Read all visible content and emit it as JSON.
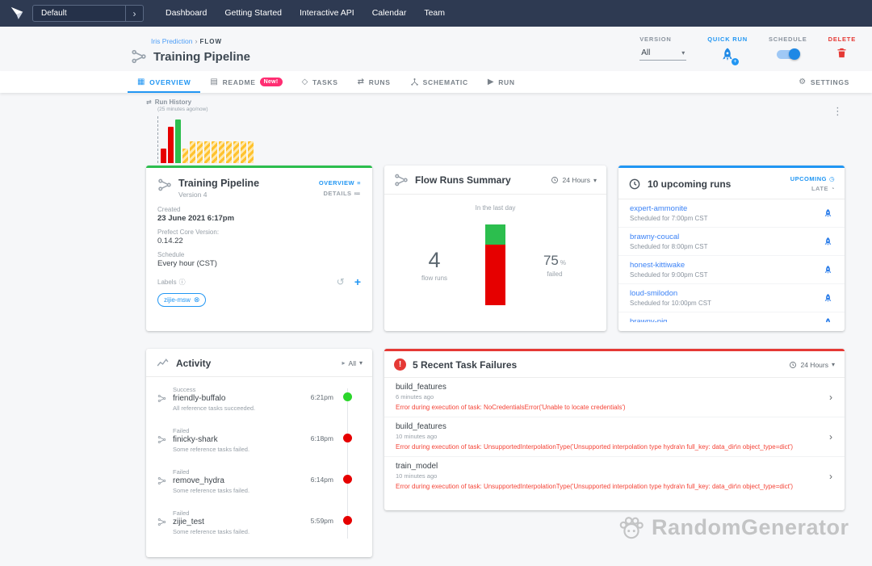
{
  "colors": {
    "topbar": "#2e3a52",
    "accent_blue": "#2196f3",
    "link_blue": "#3b82f6",
    "success_green": "#2cbe4e",
    "failed_red": "#e60000",
    "scheduled_yellow": "#ffc22e",
    "delete_red": "#e53935",
    "readme_badge_pink": "#ff2d72"
  },
  "icons": {
    "chevron_right": "›",
    "caret_down": "▾",
    "clock": "◷",
    "late_clock": "◔",
    "kebab": "⋮",
    "info": "ⓘ",
    "plus": "+",
    "restore": "↺",
    "chip_close": "⊗",
    "grid": "▦",
    "readme": "▤",
    "tasks": "◇",
    "runs": "⇄",
    "run": "▶",
    "gear": "⚙",
    "list": "≡",
    "details": "≔",
    "filter": "▸",
    "exclamation": "!"
  },
  "nav": {
    "tenant": "Default",
    "items": [
      {
        "label": "Dashboard"
      },
      {
        "label": "Getting Started"
      },
      {
        "label": "Interactive API"
      },
      {
        "label": "Calendar"
      },
      {
        "label": "Team"
      }
    ]
  },
  "header": {
    "breadcrumb": {
      "project": "Iris Prediction",
      "type": "FLOW"
    },
    "title": "Training Pipeline",
    "version": {
      "label": "VERSION",
      "value": "All"
    },
    "quick_run_label": "QUICK RUN",
    "schedule_label": "SCHEDULE",
    "delete_label": "DELETE"
  },
  "tabs": {
    "overview": "OVERVIEW",
    "readme": "README",
    "readme_badge": "New!",
    "tasks": "TASKS",
    "runs": "RUNS",
    "schematic": "SCHEMATIC",
    "run": "RUN",
    "settings": "SETTINGS"
  },
  "run_history": {
    "title": "Run History",
    "range": "(25 minutes ago/now)"
  },
  "chart_data": [
    {
      "type": "bar",
      "title": "Run History",
      "x_range": [
        "25 minutes ago",
        "now"
      ],
      "bars": [
        {
          "state": "failed",
          "value": 2
        },
        {
          "state": "failed",
          "value": 5
        },
        {
          "state": "success",
          "value": 6
        },
        {
          "state": "scheduled",
          "value": 2
        },
        {
          "state": "scheduled",
          "value": 3
        },
        {
          "state": "scheduled",
          "value": 3
        },
        {
          "state": "scheduled",
          "value": 3
        },
        {
          "state": "scheduled",
          "value": 3
        },
        {
          "state": "scheduled",
          "value": 3
        },
        {
          "state": "scheduled",
          "value": 3
        },
        {
          "state": "scheduled",
          "value": 3
        },
        {
          "state": "scheduled",
          "value": 3
        },
        {
          "state": "scheduled",
          "value": 3
        }
      ],
      "colors": {
        "failed": "#e60000",
        "success": "#2cbe4e",
        "scheduled": "#ffc22e"
      },
      "legend_position": "none",
      "grid": false
    },
    {
      "type": "bar",
      "title": "Flow Runs Summary",
      "subtitle": "In the last day",
      "period": "24 Hours",
      "categories": [
        "success",
        "failed"
      ],
      "values": [
        1,
        3
      ],
      "annotations": {
        "flow_runs": 4,
        "failed_percent": 75
      },
      "colors": {
        "success": "#2cbe4e",
        "failed": "#e60000"
      },
      "grid": false
    }
  ],
  "flow_card": {
    "title": "Training Pipeline",
    "version": "Version 4",
    "overview_link": "OVERVIEW",
    "details_link": "DETAILS",
    "created_label": "Created",
    "created_value": "23 June 2021 6:17pm",
    "core_version_label": "Prefect Core Version:",
    "core_version_value": "0.14.22",
    "schedule_label": "Schedule",
    "schedule_value": "Every hour (CST)",
    "labels_label": "Labels",
    "label_chip": "zijie-msw"
  },
  "summary_card": {
    "title": "Flow Runs Summary",
    "period": "24 Hours",
    "caption": "In the last day",
    "runs_count": "4",
    "runs_label": "flow runs",
    "failed_value": "75",
    "failed_unit": "%",
    "failed_label": "failed"
  },
  "upcoming_card": {
    "title": "10 upcoming runs",
    "upcoming_label": "UPCOMING",
    "late_label": "LATE",
    "runs": [
      {
        "name": "expert-ammonite",
        "scheduled": "Scheduled for 7:00pm CST"
      },
      {
        "name": "brawny-coucal",
        "scheduled": "Scheduled for 8:00pm CST"
      },
      {
        "name": "honest-kittiwake",
        "scheduled": "Scheduled for 9:00pm CST"
      },
      {
        "name": "loud-smilodon",
        "scheduled": "Scheduled for 10:00pm CST"
      },
      {
        "name": "brawny-pig",
        "scheduled": ""
      }
    ]
  },
  "activity_card": {
    "title": "Activity",
    "filter": "All",
    "items": [
      {
        "state": "Success",
        "name": "friendly-buffalo",
        "description": "All reference tasks succeeded.",
        "time": "6:21pm",
        "dot_color": "#2bd62b"
      },
      {
        "state": "Failed",
        "name": "finicky-shark",
        "description": "Some reference tasks failed.",
        "time": "6:18pm",
        "dot_color": "#e60000"
      },
      {
        "state": "Failed",
        "name": "remove_hydra",
        "description": "Some reference tasks failed.",
        "time": "6:14pm",
        "dot_color": "#e60000"
      },
      {
        "state": "Failed",
        "name": "zijie_test",
        "description": "Some reference tasks failed.",
        "time": "5:59pm",
        "dot_color": "#e60000"
      }
    ]
  },
  "failures_card": {
    "title": "5 Recent Task Failures",
    "period": "24 Hours",
    "items": [
      {
        "name": "build_features",
        "time": "6 minutes ago",
        "error": "Error during execution of task: NoCredentialsError('Unable to locate credentials')"
      },
      {
        "name": "build_features",
        "time": "10 minutes ago",
        "error": "Error during execution of task: UnsupportedInterpolationType('Unsupported interpolation type hydra\\n full_key: data_dir\\n object_type=dict')"
      },
      {
        "name": "train_model",
        "time": "10 minutes ago",
        "error": "Error during execution of task: UnsupportedInterpolationType('Unsupported interpolation type hydra\\n full_key: data_dir\\n object_type=dict')"
      }
    ]
  },
  "watermark": {
    "text": "RandomGenerator"
  }
}
